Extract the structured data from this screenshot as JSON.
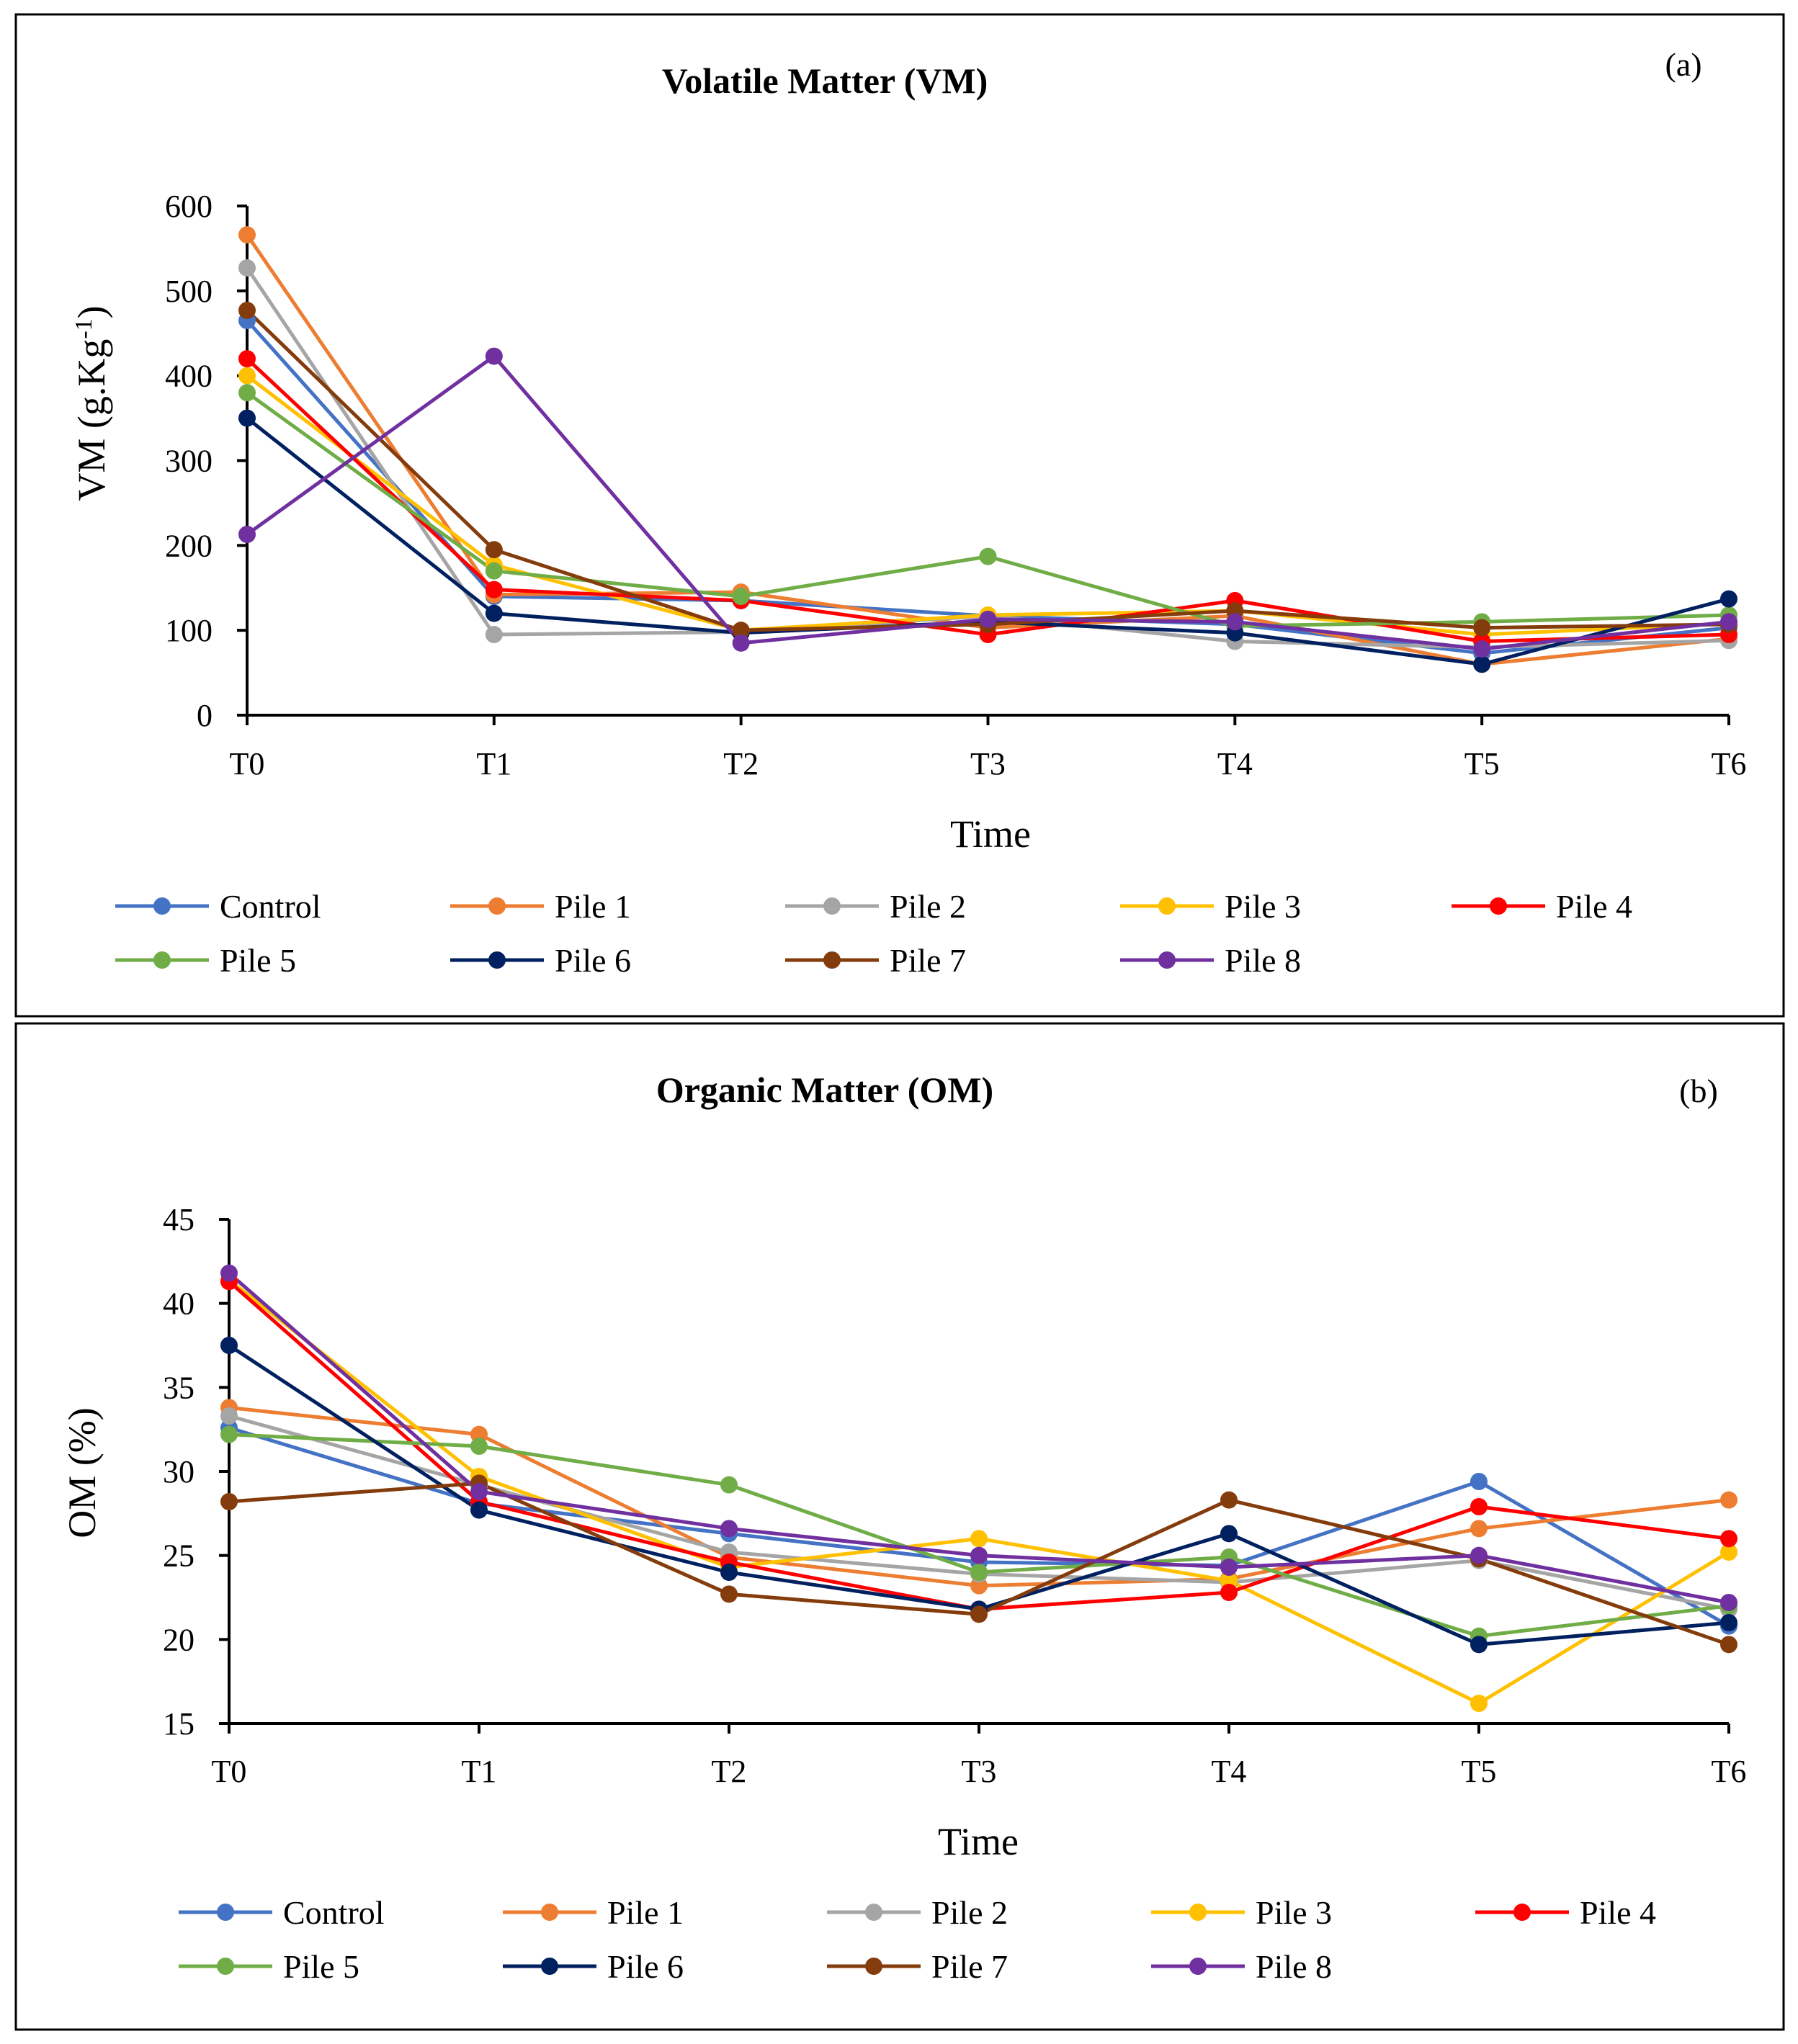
{
  "series_colors": {
    "Control": "#4472C4",
    "Pile 1": "#ED7D31",
    "Pile 2": "#A5A5A5",
    "Pile 3": "#FFC000",
    "Pile 4": "#FF0000",
    "Pile 5": "#70AD47",
    "Pile 6": "#002060",
    "Pile 7": "#843C0C",
    "Pile 8": "#7030A0"
  },
  "chart_data": [
    {
      "type": "line",
      "panel_label": "(a)",
      "title": "Volatile Matter (VM)",
      "xlabel": "Time",
      "ylabel": "VM (g.Kg",
      "ylabel_sup": "-1",
      "ylabel_end": ")",
      "categories": [
        "T0",
        "T1",
        "T2",
        "T3",
        "T4",
        "T5",
        "T6"
      ],
      "ylim": [
        0,
        600
      ],
      "yticks": [
        0,
        100,
        200,
        300,
        400,
        500,
        600
      ],
      "legend_position": "bottom",
      "series": [
        {
          "name": "Control",
          "values": [
            465,
            140,
            135,
            117,
            107,
            73,
            103
          ]
        },
        {
          "name": "Pile 1",
          "values": [
            566,
            142,
            145,
            103,
            117,
            60,
            90
          ]
        },
        {
          "name": "Pile 2",
          "values": [
            527,
            95,
            98,
            117,
            87,
            80,
            88
          ]
        },
        {
          "name": "Pile 3",
          "values": [
            400,
            177,
            100,
            118,
            123,
            95,
            108
          ]
        },
        {
          "name": "Pile 4",
          "values": [
            420,
            148,
            135,
            95,
            135,
            87,
            95
          ]
        },
        {
          "name": "Pile 5",
          "values": [
            380,
            170,
            140,
            187,
            105,
            110,
            118
          ]
        },
        {
          "name": "Pile 6",
          "values": [
            350,
            120,
            97,
            110,
            97,
            60,
            137
          ]
        },
        {
          "name": "Pile 7",
          "values": [
            477,
            195,
            100,
            107,
            123,
            103,
            107
          ]
        },
        {
          "name": "Pile 8",
          "values": [
            213,
            423,
            85,
            113,
            110,
            78,
            110
          ]
        }
      ]
    },
    {
      "type": "line",
      "panel_label": "(b)",
      "title": "Organic Matter (OM)",
      "xlabel": "Time",
      "ylabel": "OM (%)",
      "categories": [
        "T0",
        "T1",
        "T2",
        "T3",
        "T4",
        "T5",
        "T6"
      ],
      "ylim": [
        15,
        45
      ],
      "yticks": [
        15,
        20,
        25,
        30,
        35,
        40,
        45
      ],
      "legend_position": "bottom",
      "series": [
        {
          "name": "Control",
          "values": [
            32.6,
            28.1,
            26.3,
            24.6,
            24.4,
            29.4,
            20.8
          ]
        },
        {
          "name": "Pile 1",
          "values": [
            33.8,
            32.2,
            24.9,
            23.2,
            23.6,
            26.6,
            28.3
          ]
        },
        {
          "name": "Pile 2",
          "values": [
            33.3,
            29.2,
            25.2,
            23.9,
            23.4,
            24.7,
            21.8
          ]
        },
        {
          "name": "Pile 3",
          "values": [
            41.4,
            29.7,
            24.3,
            26.0,
            23.5,
            16.2,
            25.2
          ]
        },
        {
          "name": "Pile 4",
          "values": [
            41.3,
            28.2,
            24.6,
            21.8,
            22.8,
            27.9,
            26.0
          ]
        },
        {
          "name": "Pile 5",
          "values": [
            32.2,
            31.5,
            29.2,
            24.0,
            24.9,
            20.2,
            22.0
          ]
        },
        {
          "name": "Pile 6",
          "values": [
            37.5,
            27.7,
            24.0,
            21.8,
            26.3,
            19.7,
            21.0
          ]
        },
        {
          "name": "Pile 7",
          "values": [
            28.2,
            29.3,
            22.7,
            21.5,
            28.3,
            24.8,
            19.7
          ]
        },
        {
          "name": "Pile 8",
          "values": [
            41.8,
            28.8,
            26.6,
            25.0,
            24.3,
            25.0,
            22.2
          ]
        }
      ]
    }
  ]
}
